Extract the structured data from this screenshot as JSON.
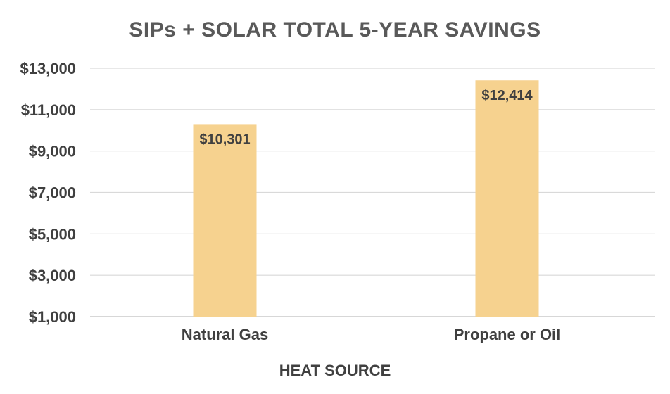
{
  "chart_data": {
    "type": "bar",
    "title": "SIPs + SOLAR TOTAL 5-YEAR SAVINGS",
    "xlabel": "HEAT SOURCE",
    "ylabel": "",
    "categories": [
      "Natural Gas",
      "Propane or Oil"
    ],
    "values": [
      10301,
      12414
    ],
    "data_labels": [
      "$10,301",
      "$12,414"
    ],
    "ylim": [
      1000,
      13000
    ],
    "yticks": [
      1000,
      3000,
      5000,
      7000,
      9000,
      11000,
      13000
    ],
    "ytick_labels": [
      "$1,000",
      "$3,000",
      "$5,000",
      "$7,000",
      "$9,000",
      "$11,000",
      "$13,000"
    ],
    "grid": true,
    "legend": "none",
    "colors": {
      "bar": "#F6D28F",
      "grid": "#D9D9D9",
      "text": "#404040",
      "title": "#595959"
    }
  }
}
